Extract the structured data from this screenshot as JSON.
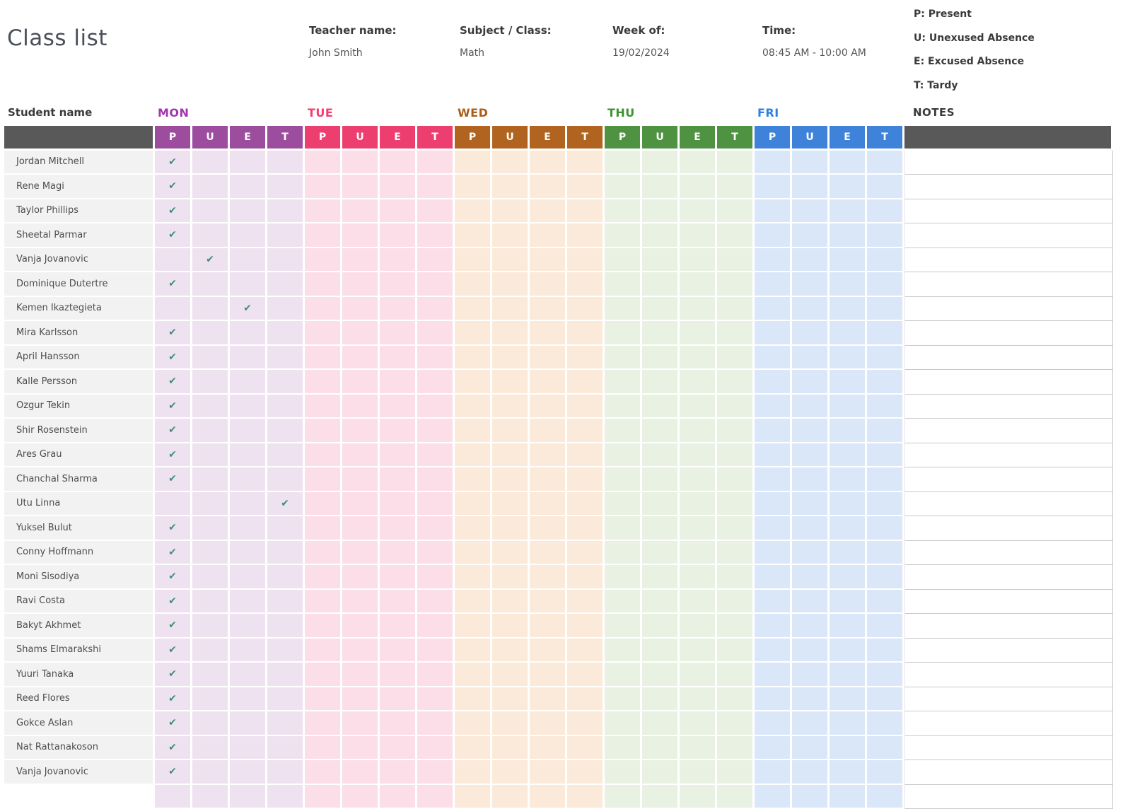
{
  "header": {
    "title": "Class list",
    "fields": [
      {
        "label": "Teacher name:",
        "value": "John Smith"
      },
      {
        "label": "Subject / Class:",
        "value": "Math"
      },
      {
        "label": "Week of:",
        "value": "19/02/2024"
      },
      {
        "label": "Time:",
        "value": "08:45 AM - 10:00 AM"
      }
    ],
    "legend": [
      "P: Present",
      "U: Unexused Absence",
      "E: Excused Absence",
      "T: Tardy"
    ]
  },
  "table": {
    "student_col_header": "Student name",
    "notes_col_header": "NOTES",
    "status_codes": [
      "P",
      "U",
      "E",
      "T"
    ],
    "check_color": "#3f8e77",
    "header_bar_color": "#595959",
    "days": [
      {
        "label": "MON",
        "label_color": "#a335af",
        "header_color": "#9c4d9e",
        "body_color": "#efe2f0"
      },
      {
        "label": "TUE",
        "label_color": "#f43a6e",
        "header_color": "#ec3e6f",
        "body_color": "#fbdee8"
      },
      {
        "label": "WED",
        "label_color": "#ab5c18",
        "header_color": "#b0641f",
        "body_color": "#fbe9d9"
      },
      {
        "label": "THU",
        "label_color": "#3e9231",
        "header_color": "#4f9342",
        "body_color": "#e8f1e2"
      },
      {
        "label": "FRI",
        "label_color": "#2e7fdf",
        "header_color": "#3e83d9",
        "body_color": "#d9e7f8"
      }
    ],
    "students": [
      {
        "name": "Jordan Mitchell",
        "attendance": {
          "MON": "P"
        }
      },
      {
        "name": "Rene Magi",
        "attendance": {
          "MON": "P"
        }
      },
      {
        "name": "Taylor Phillips",
        "attendance": {
          "MON": "P"
        }
      },
      {
        "name": "Sheetal Parmar",
        "attendance": {
          "MON": "P"
        }
      },
      {
        "name": "Vanja Jovanovic",
        "attendance": {
          "MON": "U"
        }
      },
      {
        "name": "Dominique Dutertre",
        "attendance": {
          "MON": "P"
        }
      },
      {
        "name": "Kemen Ikaztegieta",
        "attendance": {
          "MON": "E"
        }
      },
      {
        "name": "Mira Karlsson",
        "attendance": {
          "MON": "P"
        }
      },
      {
        "name": "April Hansson",
        "attendance": {
          "MON": "P"
        }
      },
      {
        "name": "Kalle Persson",
        "attendance": {
          "MON": "P"
        }
      },
      {
        "name": "Ozgur Tekin",
        "attendance": {
          "MON": "P"
        }
      },
      {
        "name": "Shir Rosenstein",
        "attendance": {
          "MON": "P"
        }
      },
      {
        "name": "Ares Grau",
        "attendance": {
          "MON": "P"
        }
      },
      {
        "name": "Chanchal Sharma",
        "attendance": {
          "MON": "P"
        }
      },
      {
        "name": "Utu Linna",
        "attendance": {
          "MON": "T"
        }
      },
      {
        "name": "Yuksel Bulut",
        "attendance": {
          "MON": "P"
        }
      },
      {
        "name": "Conny Hoffmann",
        "attendance": {
          "MON": "P"
        }
      },
      {
        "name": "Moni Sisodiya",
        "attendance": {
          "MON": "P"
        }
      },
      {
        "name": "Ravi Costa",
        "attendance": {
          "MON": "P"
        }
      },
      {
        "name": "Bakyt Akhmet",
        "attendance": {
          "MON": "P"
        }
      },
      {
        "name": "Shams Elmarakshi",
        "attendance": {
          "MON": "P"
        }
      },
      {
        "name": "Yuuri Tanaka",
        "attendance": {
          "MON": "P"
        }
      },
      {
        "name": "Reed Flores",
        "attendance": {
          "MON": "P"
        }
      },
      {
        "name": "Gokce Aslan",
        "attendance": {
          "MON": "P"
        }
      },
      {
        "name": "Nat Rattanakoson",
        "attendance": {
          "MON": "P"
        }
      },
      {
        "name": "Vanja Jovanovic",
        "attendance": {
          "MON": "P"
        }
      }
    ]
  }
}
